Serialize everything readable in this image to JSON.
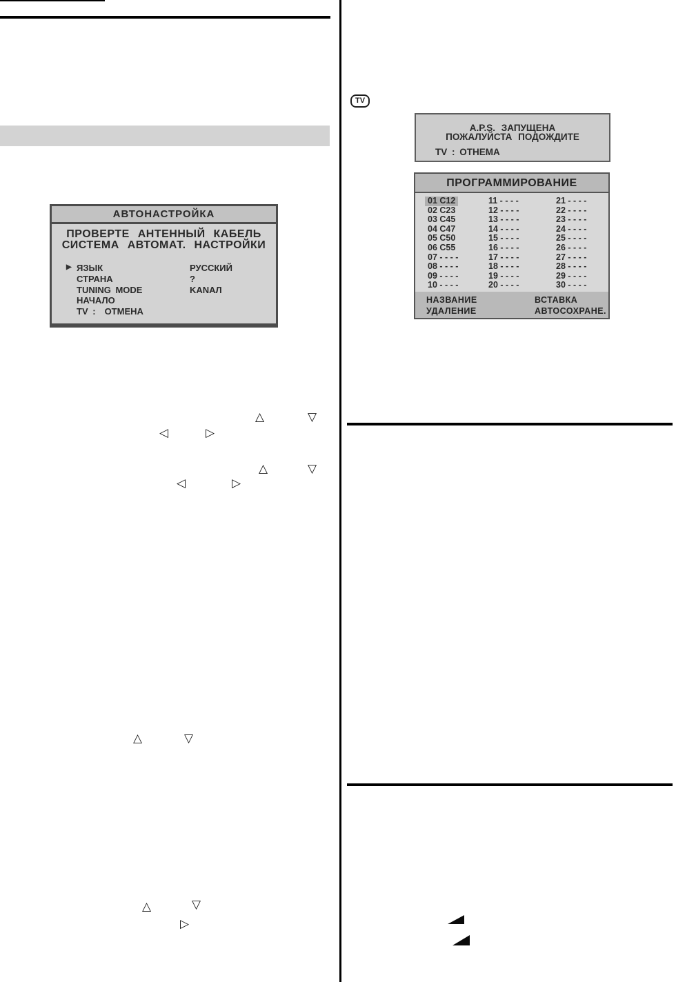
{
  "icons": {
    "arrow_up": "△",
    "arrow_down": "▽",
    "arrow_left": "◁",
    "arrow_right": "▷",
    "cursor": "▶",
    "wedge": "◢"
  },
  "colors": {
    "osd_body": "#d3d3d3",
    "osd_bar": "#b9b9b9",
    "osd_border": "#4c4c4c",
    "osd_text": "#2a2a2a",
    "highlight": "#aeaeae",
    "rule": "#000000"
  },
  "tv_badge": {
    "label": "TV"
  },
  "autotune_menu": {
    "title": "АВТОНАСТРОЙКА",
    "message_line1": "ПРОВЕРТЕ АНТЕННЫЙ КАБЕЛЬ",
    "message_line2": "СИСТЕМА АВТОМАТ. НАСТРОЙКИ",
    "items": [
      {
        "label": "ЯЗЫК",
        "value": "РУССКИЙ",
        "selected": true,
        "inline": false
      },
      {
        "label": "СТРАНА",
        "value": "?",
        "selected": false,
        "inline": false
      },
      {
        "label": "TUNING MODE",
        "value": "KANAЛ",
        "selected": false,
        "inline": false
      },
      {
        "label": "НАЧАЛО",
        "value": "",
        "selected": false,
        "inline": false
      },
      {
        "label": "TV :",
        "value": "ОТМЕНА",
        "selected": false,
        "inline": true
      }
    ]
  },
  "aps_box": {
    "line1": "A.P.S. ЗАПУЩЕНА",
    "line2": "ПОЖАЛУЙСТА ПОДОЖДИТЕ",
    "line3": "TV : ОТНЕМА"
  },
  "programming_menu": {
    "title": "ПРОГРАММИРОВАНИЕ",
    "columns": [
      {
        "cells": [
          {
            "text": "01 C12",
            "selected": true
          },
          {
            "text": "02 C23"
          },
          {
            "text": "03 C45"
          },
          {
            "text": "04 C47"
          },
          {
            "text": "05 C50"
          },
          {
            "text": "06 C55"
          },
          {
            "text": "07 - - - -"
          },
          {
            "text": "08 - - - -"
          },
          {
            "text": "09 - - - -"
          },
          {
            "text": "10 - - - -"
          }
        ]
      },
      {
        "cells": [
          {
            "text": "11 - - - -"
          },
          {
            "text": "12 - - - -"
          },
          {
            "text": "13 - - - -"
          },
          {
            "text": "14 - - - -"
          },
          {
            "text": "15 - - - -"
          },
          {
            "text": "16 - - - -"
          },
          {
            "text": "17 - - - -"
          },
          {
            "text": "18 - - - -"
          },
          {
            "text": "19 - - - -"
          },
          {
            "text": "20 - - - -"
          }
        ]
      },
      {
        "cells": [
          {
            "text": "21 - - - -"
          },
          {
            "text": "22 - - - -"
          },
          {
            "text": "23 - - - -"
          },
          {
            "text": "24 - - - -"
          },
          {
            "text": "25 - - - -"
          },
          {
            "text": "26 - - - -"
          },
          {
            "text": "27 - - - -"
          },
          {
            "text": "28 - - - -"
          },
          {
            "text": "29 - - - -"
          },
          {
            "text": "30 - - - -"
          }
        ]
      }
    ],
    "footer": {
      "name_label": "НАЗВАНИЕ",
      "insert_label": "ВСТАВКА",
      "delete_label": "УДАЛЕНИЕ",
      "autosave_label": "АВТОСОХРАНЕ."
    }
  }
}
